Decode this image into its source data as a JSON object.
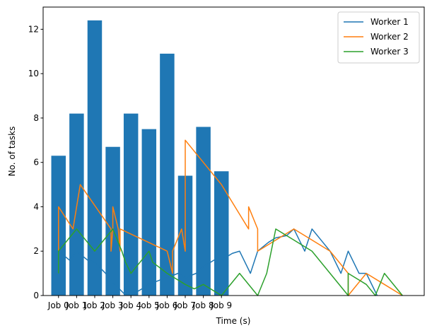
{
  "chart_data": {
    "type": "bar",
    "title": "",
    "xlabel": "Time (s)",
    "ylabel": "No. of tasks",
    "xlim": [
      -0.85,
      20.2
    ],
    "ylim": [
      0,
      13
    ],
    "yticks": [
      0,
      2,
      4,
      6,
      8,
      10,
      12
    ],
    "grid": false,
    "legend_position": "top-right",
    "bar_color": "#1f77b4",
    "categories": [
      "Job 0",
      "Job 1",
      "Job 2",
      "Job 3",
      "Job 4",
      "Job 5",
      "Job 6",
      "Job 7",
      "Job 8",
      "Job 9"
    ],
    "values": [
      6.3,
      8.2,
      12.4,
      6.7,
      8.2,
      7.5,
      10.9,
      5.4,
      7.6,
      5.6
    ],
    "series": [
      {
        "name": "Worker 1",
        "type": "line",
        "color": "#1f77b4",
        "x": [
          0,
          0.6,
          1,
          1.6,
          2,
          2.6,
          3,
          3.6,
          4,
          4.6,
          5,
          5.6,
          6,
          6.6,
          7,
          7.6,
          8,
          8.6,
          9,
          9.6,
          10,
          10.6,
          11,
          11.6,
          12,
          12.6,
          13,
          13.6,
          14,
          14.6,
          15,
          15.6,
          16,
          16.6,
          17,
          17.6
        ],
        "y": [
          2,
          1.6,
          2,
          1.6,
          1.5,
          1.0,
          0.6,
          0.1,
          0,
          0.3,
          0.5,
          0.7,
          0.8,
          1.0,
          0.8,
          1.0,
          1.3,
          1.6,
          1.6,
          1.9,
          2,
          1,
          2,
          2.4,
          2.6,
          2.7,
          3,
          2,
          3,
          2.4,
          2,
          1,
          2,
          1,
          1,
          0
        ]
      },
      {
        "name": "Worker 2",
        "type": "line",
        "color": "#ff7f0e",
        "x": [
          0,
          0,
          0.8,
          0.8,
          1.2,
          2.9,
          2.9,
          3,
          3,
          3.3,
          3.4,
          3.4,
          6,
          6.3,
          6.3,
          6.8,
          7,
          7,
          8,
          9,
          10.5,
          10.5,
          11,
          11,
          13,
          14,
          15,
          16,
          16,
          17,
          18,
          19
        ],
        "y": [
          2,
          4,
          3,
          3,
          5,
          3,
          2,
          3,
          4,
          3,
          2,
          3,
          2,
          1,
          2,
          3,
          2,
          7,
          6,
          5,
          3,
          4,
          3,
          2,
          3,
          2.5,
          2,
          1,
          0,
          1,
          0.5,
          0
        ]
      },
      {
        "name": "Worker 3",
        "type": "line",
        "color": "#2ca02c",
        "x": [
          0,
          0,
          1,
          1.5,
          2,
          3,
          3.5,
          3.7,
          4,
          4.5,
          5,
          5.2,
          6,
          7,
          7.5,
          8,
          9,
          10,
          11,
          11.5,
          12,
          13,
          14,
          15,
          15,
          16,
          16,
          17,
          17.5,
          18,
          19
        ],
        "y": [
          1,
          2,
          3,
          2.5,
          2,
          3,
          2,
          1.5,
          1,
          1.5,
          2,
          1.5,
          1,
          0.5,
          0.3,
          0.5,
          0,
          1,
          0,
          1,
          3,
          2.5,
          2,
          1,
          1,
          0,
          1,
          0.5,
          0,
          1,
          0
        ]
      }
    ]
  }
}
